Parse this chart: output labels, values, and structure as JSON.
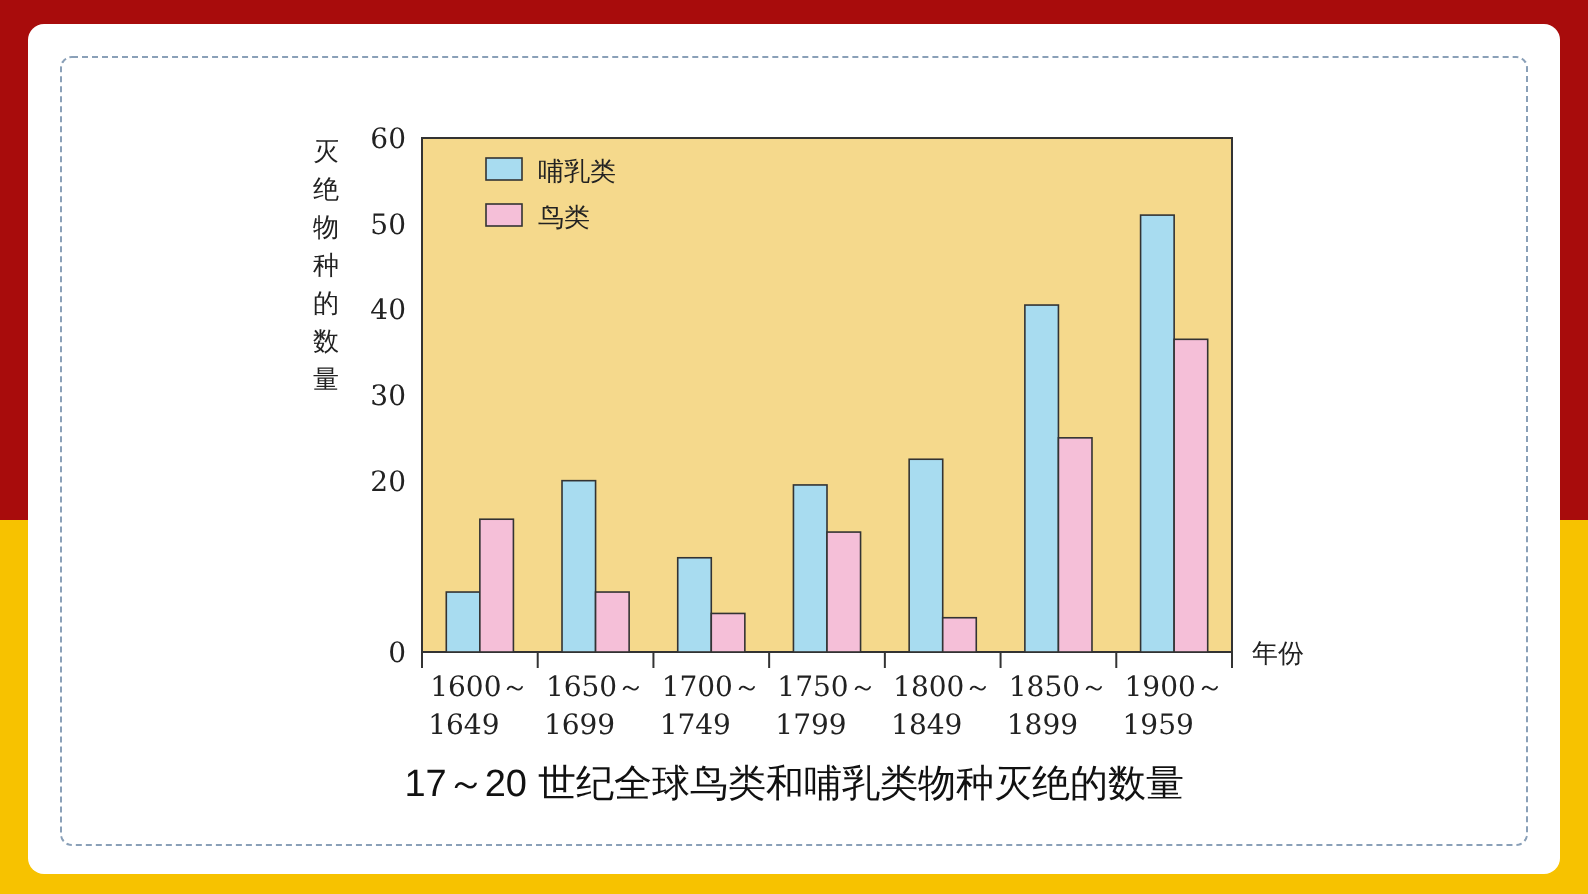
{
  "chart_data": {
    "type": "bar",
    "title": "17～20 世纪全球鸟类和哺乳类物种灭绝的数量",
    "xlabel": "年份",
    "ylabel": "灭绝物种的数量",
    "categories": [
      "1600～1649",
      "1650～1699",
      "1700～1749",
      "1750～1799",
      "1800～1849",
      "1850～1899",
      "1900～1959"
    ],
    "series": [
      {
        "name": "哺乳类",
        "color": "#a8dcf0",
        "values": [
          7,
          20,
          11,
          19.5,
          22.5,
          40.5,
          51
        ]
      },
      {
        "name": "鸟类",
        "color": "#f5bfd8",
        "values": [
          15.5,
          7,
          4.5,
          14,
          4,
          25,
          36.5
        ]
      }
    ],
    "ylim": [
      0,
      60
    ],
    "yticks": [
      0,
      20,
      30,
      40,
      50,
      60
    ],
    "legend": "top left",
    "grid": false
  }
}
